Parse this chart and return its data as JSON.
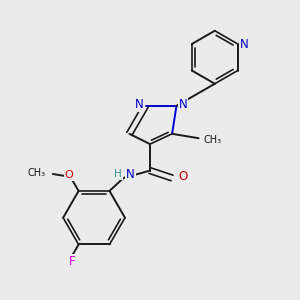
{
  "bg_color": "#ebebeb",
  "bond_color": "#1a1a1a",
  "N_color": "#0000cc",
  "O_color": "#cc0000",
  "F_color": "#cc00cc",
  "H_color": "#3a9090",
  "figsize": [
    3.0,
    3.0
  ],
  "dpi": 100,
  "xlim": [
    0,
    10
  ],
  "ylim": [
    0,
    10
  ]
}
